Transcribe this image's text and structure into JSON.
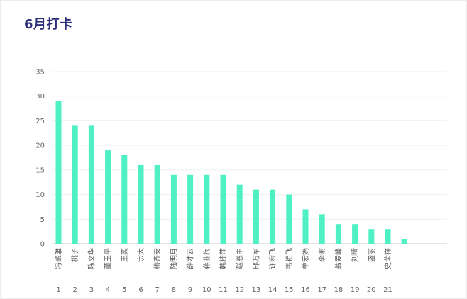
{
  "title": "6月打卡",
  "chart_data": {
    "type": "bar",
    "color": "#4ef0c4",
    "grid": true,
    "ylim": [
      0,
      35
    ],
    "yticks": [
      "0",
      "5",
      "10",
      "15",
      "20",
      "25",
      "30",
      "35"
    ],
    "categories": [
      "冯聚雏",
      "桃子",
      "陈文华",
      "董玉平",
      "王奕",
      "宗大",
      "杨齐安",
      "陆明月",
      "薛才云",
      "蒋业梅",
      "韩桂萍",
      "赵恩中",
      "邱万军",
      "许宏飞",
      "韦祖飞",
      "单宏娟",
      "李谢",
      "翁爱峰",
      "刘晴",
      "盛丽",
      "史荣祥",
      ""
    ],
    "ranks": [
      "1",
      "2",
      "3",
      "4",
      "5",
      "6",
      "7",
      "8",
      "9",
      "10",
      "11",
      "12",
      "13",
      "14",
      "15",
      "16",
      "17",
      "18",
      "19",
      "20",
      "21",
      ""
    ],
    "values": [
      29,
      24,
      24,
      19,
      18,
      16,
      16,
      14,
      14,
      14,
      14,
      12,
      11,
      11,
      10,
      7,
      6,
      4,
      4,
      3,
      3,
      1
    ]
  }
}
